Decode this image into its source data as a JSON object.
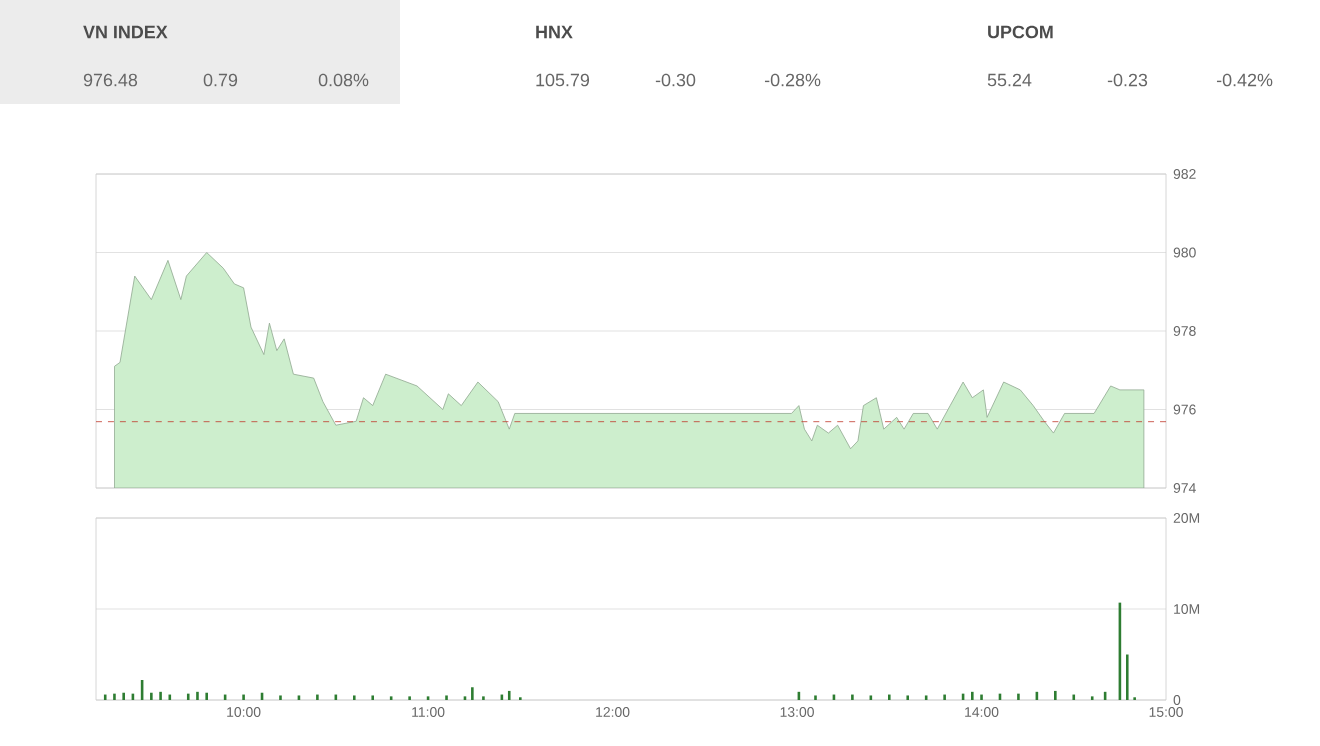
{
  "chart_data": [
    {
      "type": "other",
      "annotations": [
        "VN INDEX",
        "976.48",
        "0.79",
        "0.08%",
        "HNX",
        "105.79",
        "-0.30",
        "-0.28%",
        "UPCOM",
        "55.24",
        "-0.23",
        "-0.42%"
      ]
    },
    {
      "type": "area",
      "color": "#cdeecd",
      "marker": "none",
      "grid": "y",
      "tick_labels": "y",
      "xlim": [
        9.2,
        15.0
      ],
      "ylim": [
        974,
        982
      ],
      "yticks": [
        974,
        976,
        978,
        980,
        982
      ],
      "ref_lines": [
        {
          "axis": "y",
          "value": 975.69,
          "color": "#c0392b",
          "line_style": "dashed"
        }
      ],
      "x": [
        9.3,
        9.33,
        9.41,
        9.5,
        9.59,
        9.66,
        9.69,
        9.8,
        9.89,
        9.95,
        10.0,
        10.04,
        10.11,
        10.14,
        10.18,
        10.22,
        10.27,
        10.38,
        10.43,
        10.5,
        10.61,
        10.65,
        10.7,
        10.77,
        10.94,
        11.08,
        11.11,
        11.18,
        11.27,
        11.38,
        11.44,
        11.47,
        12.97,
        13.01,
        13.04,
        13.08,
        13.11,
        13.17,
        13.22,
        13.29,
        13.33,
        13.36,
        13.43,
        13.47,
        13.54,
        13.58,
        13.63,
        13.71,
        13.76,
        13.83,
        13.9,
        13.95,
        14.01,
        14.03,
        14.12,
        14.21,
        14.28,
        14.34,
        14.39,
        14.45,
        14.61,
        14.7,
        14.75,
        14.88
      ],
      "values": [
        977.1,
        977.2,
        979.4,
        978.8,
        979.8,
        978.8,
        979.4,
        980.0,
        979.6,
        979.2,
        979.1,
        978.1,
        977.4,
        978.2,
        977.5,
        977.8,
        976.9,
        976.8,
        976.2,
        975.6,
        975.7,
        976.3,
        976.1,
        976.9,
        976.6,
        976.0,
        976.4,
        976.1,
        976.7,
        976.2,
        975.5,
        975.9,
        975.9,
        976.1,
        975.5,
        975.2,
        975.6,
        975.4,
        975.6,
        975.0,
        975.2,
        976.1,
        976.3,
        975.5,
        975.8,
        975.5,
        975.9,
        975.9,
        975.5,
        976.1,
        976.7,
        976.3,
        976.5,
        975.8,
        976.7,
        976.5,
        976.1,
        975.7,
        975.4,
        975.9,
        975.9,
        976.6,
        976.5,
        976.5
      ]
    },
    {
      "type": "bar",
      "color": "#2e7d32",
      "grid": "y",
      "xlim": [
        9.2,
        15.0
      ],
      "ylim": [
        0,
        20
      ],
      "yticks": [
        0,
        {
          "value": 10,
          "label": "10M"
        },
        {
          "value": 20,
          "label": "20M"
        }
      ],
      "xticks": [
        {
          "value": 10,
          "label": "10:00"
        },
        {
          "value": 11,
          "label": "11:00"
        },
        {
          "value": 12,
          "label": "12:00"
        },
        {
          "value": 13,
          "label": "13:00"
        },
        {
          "value": 14,
          "label": "14:00"
        },
        {
          "value": 15,
          "label": "15:00"
        }
      ],
      "x": [
        9.25,
        9.3,
        9.35,
        9.4,
        9.45,
        9.5,
        9.55,
        9.6,
        9.7,
        9.75,
        9.8,
        9.9,
        10.0,
        10.1,
        10.2,
        10.3,
        10.4,
        10.5,
        10.6,
        10.7,
        10.8,
        10.9,
        11.0,
        11.1,
        11.2,
        11.24,
        11.3,
        11.4,
        11.44,
        11.5,
        13.01,
        13.1,
        13.2,
        13.3,
        13.4,
        13.5,
        13.6,
        13.7,
        13.8,
        13.9,
        13.95,
        14.0,
        14.1,
        14.2,
        14.3,
        14.4,
        14.5,
        14.6,
        14.67,
        14.75,
        14.79,
        14.83
      ],
      "values": [
        0.6,
        0.7,
        0.8,
        0.7,
        2.2,
        0.8,
        0.9,
        0.6,
        0.7,
        0.9,
        0.8,
        0.6,
        0.6,
        0.8,
        0.5,
        0.5,
        0.6,
        0.6,
        0.5,
        0.5,
        0.4,
        0.4,
        0.4,
        0.5,
        0.4,
        1.4,
        0.4,
        0.6,
        1.0,
        0.3,
        0.9,
        0.5,
        0.6,
        0.6,
        0.5,
        0.6,
        0.5,
        0.5,
        0.6,
        0.7,
        0.9,
        0.6,
        0.7,
        0.7,
        0.9,
        1.0,
        0.6,
        0.4,
        0.9,
        10.7,
        5.0,
        0.3
      ]
    }
  ]
}
